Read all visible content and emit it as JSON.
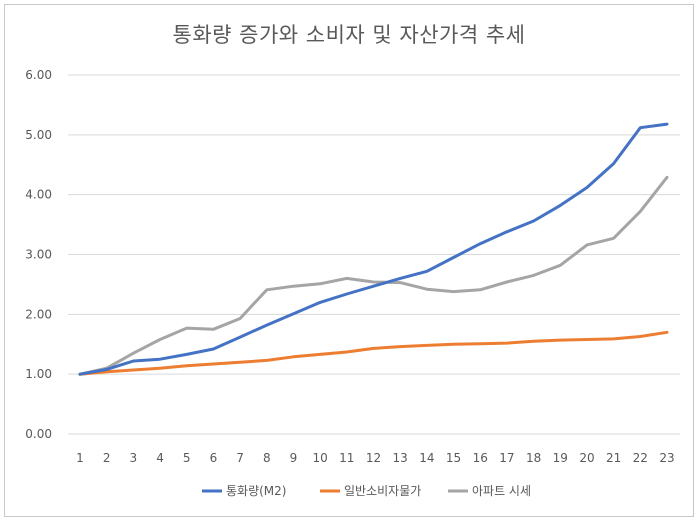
{
  "chart_data": {
    "type": "line",
    "title": "통화량 증가와 소비자 및 자산가격 추세",
    "xlabel": "",
    "ylabel": "",
    "x": [
      1,
      2,
      3,
      4,
      5,
      6,
      7,
      8,
      9,
      10,
      11,
      12,
      13,
      14,
      15,
      16,
      17,
      18,
      19,
      20,
      21,
      22,
      23
    ],
    "ylim": [
      0,
      6
    ],
    "y_ticks": [
      "0.00",
      "1.00",
      "2.00",
      "3.00",
      "4.00",
      "5.00",
      "6.00"
    ],
    "grid": "horizontal",
    "legend_position": "bottom",
    "series": [
      {
        "name": "통화량(M2)",
        "color": "#4472c4",
        "values": [
          1.0,
          1.08,
          1.22,
          1.25,
          1.33,
          1.42,
          1.62,
          1.82,
          2.01,
          2.2,
          2.34,
          2.47,
          2.6,
          2.72,
          2.95,
          3.18,
          3.38,
          3.56,
          3.82,
          4.12,
          4.52,
          5.12,
          5.18
        ]
      },
      {
        "name": "일반소비자물가",
        "color": "#ed7d31",
        "values": [
          1.0,
          1.04,
          1.07,
          1.1,
          1.14,
          1.17,
          1.2,
          1.23,
          1.29,
          1.33,
          1.37,
          1.43,
          1.46,
          1.48,
          1.5,
          1.51,
          1.52,
          1.55,
          1.57,
          1.58,
          1.59,
          1.63,
          1.7
        ]
      },
      {
        "name": "아파트 시세",
        "color": "#a5a5a5",
        "values": [
          1.0,
          1.1,
          1.35,
          1.58,
          1.77,
          1.75,
          1.93,
          2.41,
          2.47,
          2.51,
          2.6,
          2.54,
          2.53,
          2.42,
          2.38,
          2.41,
          2.54,
          2.65,
          2.82,
          3.16,
          3.27,
          3.72,
          4.29
        ]
      }
    ]
  }
}
